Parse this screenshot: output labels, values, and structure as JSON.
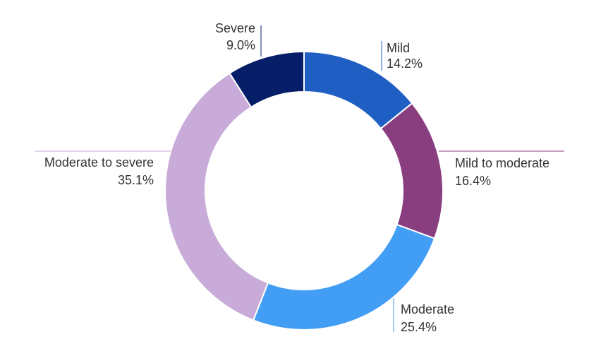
{
  "chart_data": {
    "type": "pie",
    "title": "",
    "categories": [
      "Mild",
      "Mild to moderate",
      "Moderate",
      "Moderate to severe",
      "Severe"
    ],
    "values": [
      14.2,
      16.4,
      25.4,
      35.1,
      9.0
    ],
    "value_labels": [
      "14.2%",
      "16.4%",
      "25.4%",
      "35.1%",
      "9.0%"
    ],
    "colors": [
      "#1F5FC4",
      "#883E7F",
      "#429EF5",
      "#C8ABD8",
      "#061D67"
    ],
    "style": "donut",
    "legend": "none"
  }
}
